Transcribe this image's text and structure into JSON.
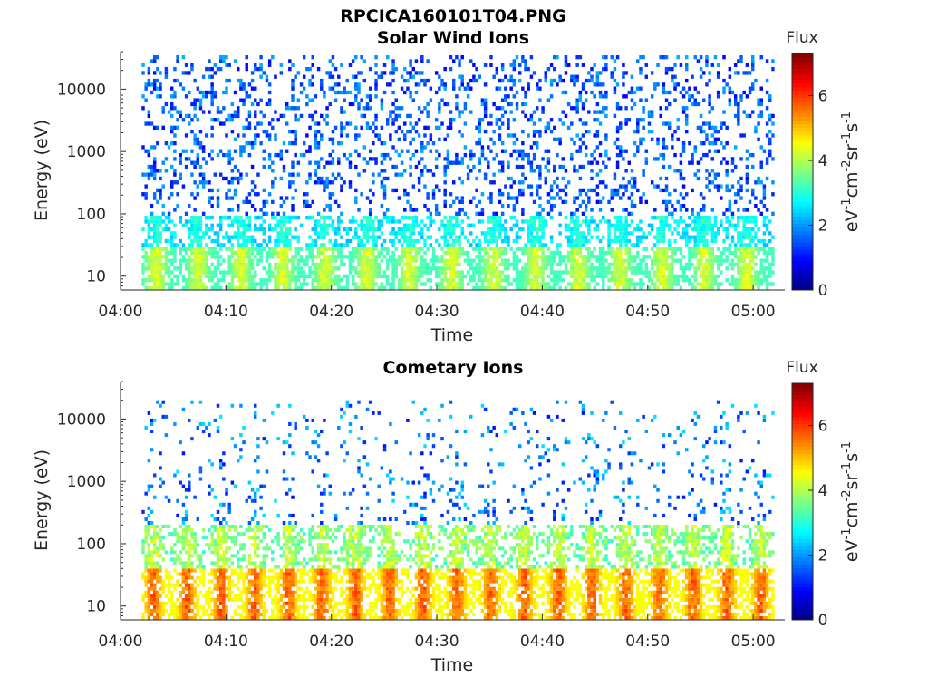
{
  "figure": {
    "filename_title": "RPCICA160101T04.PNG"
  },
  "colorbar": {
    "title": "Flux",
    "unit_label_parts": [
      "eV",
      "-1",
      "cm",
      "-2",
      "sr",
      "-1",
      "s",
      "-1"
    ],
    "range": [
      0,
      7.3
    ],
    "tick_values": [
      0,
      2,
      4,
      6
    ],
    "tick_labels": [
      "0",
      "2",
      "4",
      "6"
    ],
    "colormap": "jet"
  },
  "chart_data": [
    {
      "type": "heatmap",
      "title": "Solar Wind Ions",
      "xlabel": "Time",
      "ylabel": "Energy (eV)",
      "x_ticks": [
        "04:00",
        "04:10",
        "04:20",
        "04:30",
        "04:40",
        "04:50",
        "05:00"
      ],
      "x_range": [
        "04:00",
        "05:03"
      ],
      "data_x_range": [
        "04:02",
        "05:02"
      ],
      "y_scale": "log",
      "y_ticks": [
        10,
        100,
        1000,
        10000
      ],
      "y_tick_labels": [
        "10",
        "100",
        "1000",
        "10000"
      ],
      "y_range": [
        6,
        40000
      ],
      "z_label": "Flux (log10 eV-1 cm-2 sr-1 s-1)",
      "z_range": [
        0,
        7.3
      ],
      "sweep_period_min": 4,
      "profile": {
        "low_energy_core_ev": [
          6,
          30
        ],
        "core_flux": [
          3.2,
          4.6
        ],
        "mid_band_ev": [
          30,
          100
        ],
        "mid_band_flux": [
          2.2,
          3.3
        ],
        "sparse_background_ev": [
          100,
          35000
        ],
        "background_flux": [
          0.9,
          2.2
        ]
      }
    },
    {
      "type": "heatmap",
      "title": "Cometary Ions",
      "xlabel": "Time",
      "ylabel": "Energy (eV)",
      "x_ticks": [
        "04:00",
        "04:10",
        "04:20",
        "04:30",
        "04:40",
        "04:50",
        "05:00"
      ],
      "x_range": [
        "04:00",
        "05:03"
      ],
      "data_x_range": [
        "04:02",
        "05:02"
      ],
      "y_scale": "log",
      "y_ticks": [
        10,
        100,
        1000,
        10000
      ],
      "y_tick_labels": [
        "10",
        "100",
        "1000",
        "10000"
      ],
      "y_range": [
        6,
        40000
      ],
      "z_label": "Flux (log10 eV-1 cm-2 sr-1 s-1)",
      "z_range": [
        0,
        7.3
      ],
      "sweep_period_min": 3.2,
      "profile": {
        "low_energy_core_ev": [
          6,
          40
        ],
        "core_flux": [
          4.5,
          6.1
        ],
        "mid_band_ev": [
          40,
          200
        ],
        "mid_band_flux": [
          3.0,
          4.6
        ],
        "sparse_background_ev": [
          200,
          20000
        ],
        "background_flux": [
          1.0,
          2.6
        ]
      }
    }
  ]
}
